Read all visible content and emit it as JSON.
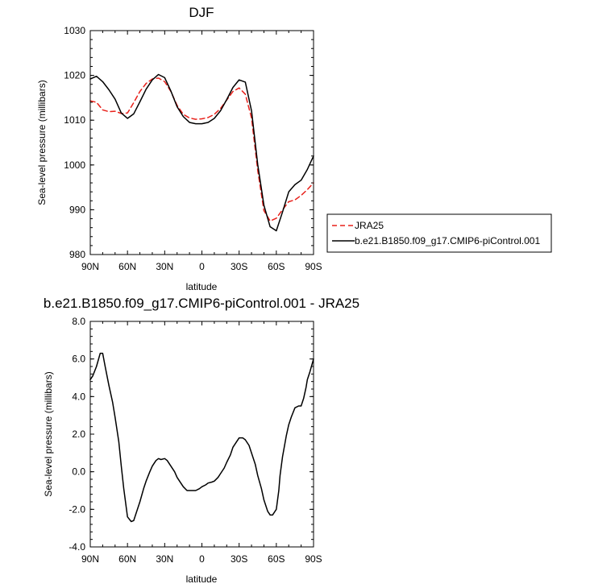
{
  "chart_data": [
    {
      "type": "line",
      "title": "DJF",
      "xlabel": "latitude",
      "ylabel": "Sea-level pressure (millibars)",
      "xlim": [
        -90,
        90
      ],
      "ylim": [
        980,
        1030
      ],
      "x_ticks": [
        -90,
        -60,
        -30,
        0,
        30,
        60,
        90
      ],
      "x_tick_labels": [
        "90N",
        "60N",
        "30N",
        "0",
        "30S",
        "60S",
        "90S"
      ],
      "y_ticks": [
        980,
        990,
        1000,
        1010,
        1020,
        1030
      ],
      "y_tick_labels": [
        "980",
        "990",
        "1000",
        "1010",
        "1020",
        "1030"
      ],
      "legend_position": "outside-right",
      "series": [
        {
          "name": "JRA25",
          "color": "#e8201a",
          "dash": "dashed",
          "x": [
            -90,
            -85,
            -80,
            -75,
            -70,
            -65,
            -60,
            -55,
            -50,
            -45,
            -40,
            -35,
            -30,
            -25,
            -20,
            -15,
            -10,
            -5,
            0,
            5,
            10,
            15,
            20,
            25,
            30,
            35,
            40,
            45,
            50,
            55,
            60,
            65,
            70,
            75,
            80,
            85,
            90
          ],
          "y": [
            1014.3,
            1014.0,
            1012.3,
            1011.9,
            1012.0,
            1011.5,
            1011.6,
            1013.9,
            1016.4,
            1018.2,
            1019.2,
            1019.4,
            1018.6,
            1016.4,
            1013.3,
            1011.3,
            1010.5,
            1010.2,
            1010.3,
            1010.6,
            1011.3,
            1012.6,
            1014.5,
            1016.4,
            1017.2,
            1015.8,
            1010.5,
            998.8,
            989.8,
            987.5,
            988.1,
            990.0,
            991.8,
            992.2,
            993.2,
            994.5,
            996.0
          ]
        },
        {
          "name": "b.e21.B1850.f09_g17.CMIP6-piControl.001",
          "color": "#000000",
          "dash": "solid",
          "x": [
            -90,
            -85,
            -80,
            -75,
            -70,
            -65,
            -60,
            -55,
            -50,
            -45,
            -40,
            -35,
            -30,
            -25,
            -20,
            -15,
            -10,
            -5,
            0,
            5,
            10,
            15,
            20,
            25,
            30,
            35,
            40,
            45,
            50,
            55,
            60,
            65,
            70,
            75,
            80,
            85,
            90
          ],
          "y": [
            1019.2,
            1019.8,
            1018.6,
            1016.8,
            1014.7,
            1011.6,
            1010.4,
            1011.4,
            1014.1,
            1016.9,
            1019.0,
            1020.2,
            1019.5,
            1016.5,
            1013.0,
            1010.8,
            1009.5,
            1009.2,
            1009.2,
            1009.5,
            1010.4,
            1012.1,
            1014.6,
            1017.3,
            1019.0,
            1018.5,
            1012.1,
            1000.1,
            991.0,
            986.2,
            985.3,
            989.5,
            994.0,
            995.6,
            996.6,
            999.0,
            1002.0
          ]
        }
      ]
    },
    {
      "type": "line",
      "title": "b.e21.B1850.f09_g17.CMIP6-piControl.001 - JRA25",
      "xlabel": "latitude",
      "ylabel": "Sea-level pressure (millibars)",
      "xlim": [
        -90,
        90
      ],
      "ylim": [
        -4,
        8
      ],
      "x_ticks": [
        -90,
        -60,
        -30,
        0,
        30,
        60,
        90
      ],
      "x_tick_labels": [
        "90N",
        "60N",
        "30N",
        "0",
        "30S",
        "60S",
        "90S"
      ],
      "y_ticks": [
        -4,
        -2,
        0,
        2,
        4,
        6,
        8
      ],
      "y_tick_labels": [
        "-4.0",
        "-2.0",
        "0.0",
        "2.0",
        "4.0",
        "6.0",
        "8.0"
      ],
      "series": [
        {
          "color": "#000000",
          "dash": "solid",
          "x": [
            -90,
            -88,
            -85,
            -82,
            -80,
            -78,
            -75,
            -72,
            -70,
            -67,
            -65,
            -63,
            -60,
            -57,
            -55,
            -53,
            -50,
            -47,
            -45,
            -42,
            -40,
            -37,
            -35,
            -33,
            -30,
            -28,
            -25,
            -22,
            -20,
            -17,
            -15,
            -12,
            -10,
            -7,
            -5,
            -2,
            0,
            3,
            5,
            8,
            10,
            13,
            15,
            18,
            20,
            23,
            25,
            28,
            30,
            33,
            35,
            38,
            40,
            43,
            45,
            48,
            50,
            53,
            55,
            57,
            60,
            62,
            63,
            65,
            68,
            70,
            72,
            75,
            78,
            80,
            82,
            84,
            85,
            87,
            90
          ],
          "y": [
            4.9,
            5.1,
            5.6,
            6.3,
            6.3,
            5.6,
            4.6,
            3.7,
            2.9,
            1.6,
            0.3,
            -0.9,
            -2.4,
            -2.65,
            -2.6,
            -2.2,
            -1.6,
            -0.9,
            -0.5,
            0.0,
            0.3,
            0.6,
            0.7,
            0.65,
            0.7,
            0.6,
            0.3,
            0.0,
            -0.3,
            -0.6,
            -0.8,
            -1.0,
            -1.0,
            -1.0,
            -1.0,
            -0.9,
            -0.8,
            -0.7,
            -0.6,
            -0.55,
            -0.5,
            -0.3,
            -0.1,
            0.2,
            0.5,
            0.9,
            1.3,
            1.6,
            1.8,
            1.8,
            1.7,
            1.4,
            1.0,
            0.4,
            -0.2,
            -0.9,
            -1.5,
            -2.1,
            -2.3,
            -2.3,
            -2.0,
            -1.0,
            -0.2,
            0.8,
            1.9,
            2.5,
            2.9,
            3.4,
            3.5,
            3.5,
            3.9,
            4.5,
            4.9,
            5.3,
            6.0
          ]
        }
      ]
    }
  ]
}
